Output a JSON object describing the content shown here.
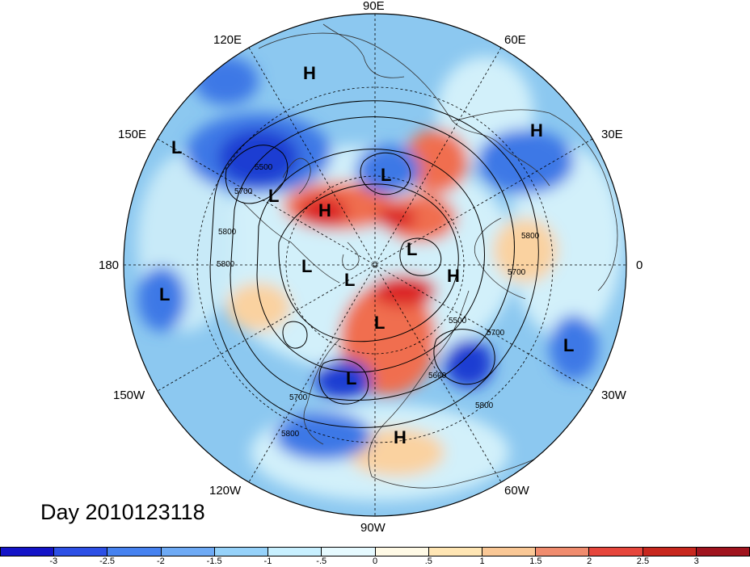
{
  "map": {
    "longitude_labels": [
      {
        "id": "lon-90e",
        "text": "90E"
      },
      {
        "id": "lon-60e",
        "text": "60E"
      },
      {
        "id": "lon-30e",
        "text": "30E"
      },
      {
        "id": "lon-0",
        "text": "0"
      },
      {
        "id": "lon-30w",
        "text": "30W"
      },
      {
        "id": "lon-60w",
        "text": "60W"
      },
      {
        "id": "lon-90w",
        "text": "90W"
      },
      {
        "id": "lon-120w",
        "text": "120W"
      },
      {
        "id": "lon-150w",
        "text": "150W"
      },
      {
        "id": "lon-180",
        "text": "180"
      },
      {
        "id": "lon-150e",
        "text": "150E"
      },
      {
        "id": "lon-120e",
        "text": "120E"
      }
    ],
    "pressure_centers": {
      "high": "H",
      "low": "L"
    },
    "contour_labels": [
      "5500",
      "5600",
      "5700",
      "5800"
    ]
  },
  "title": {
    "day_label": "Day 2010123118"
  },
  "colorbar": {
    "colors": [
      "#1414c8",
      "#2d50e6",
      "#4682f0",
      "#6eaaf5",
      "#96d2fa",
      "#c8f0ff",
      "#e6faff",
      "#fffae6",
      "#ffe6b4",
      "#fac896",
      "#f08c6e",
      "#e6463c",
      "#c8281e",
      "#a0141e"
    ],
    "tick_labels": [
      "-3",
      "-2.5",
      "-2",
      "-1.5",
      "-1",
      "-.5",
      "0",
      ".5",
      "1",
      "1.5",
      "2",
      "2.5",
      "3"
    ],
    "field_colors": {
      "background": "#8cc8f0",
      "neutral": "#d2f0fa",
      "strong_low": "#1e3cd2",
      "medium_low": "#3c78e6",
      "strong_high": "#dc2828",
      "medium_high": "#f06e50",
      "weak_high": "#fad2a0"
    }
  }
}
